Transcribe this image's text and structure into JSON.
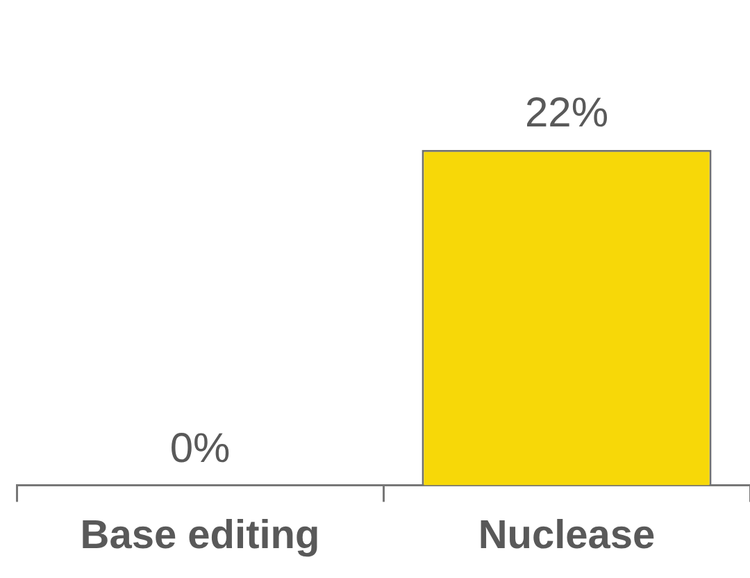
{
  "chart_data": {
    "type": "bar",
    "categories": [
      "Base editing",
      "Nuclease"
    ],
    "values": [
      0,
      22
    ],
    "color": "#f7d808",
    "value_labels": [
      "0%",
      "22%"
    ]
  }
}
